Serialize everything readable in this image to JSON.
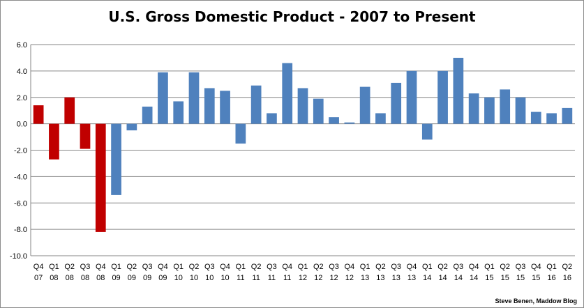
{
  "chart_data": {
    "type": "bar",
    "title": "U.S. Gross Domestic Product - 2007 to Present",
    "source": "Steve Benen, Maddow Blog",
    "xlabel": "",
    "ylabel": "",
    "ylim": [
      -10.0,
      6.0
    ],
    "yticks": [
      "6.0",
      "4.0",
      "2.0",
      "0.0",
      "-2.0",
      "-4.0",
      "-6.0",
      "-8.0",
      "-10.0"
    ],
    "grid": true,
    "legend": "none",
    "colors": {
      "highlight": "#c00000",
      "default": "#4f81bd"
    },
    "categories": [
      [
        "Q4",
        "07"
      ],
      [
        "Q1",
        "08"
      ],
      [
        "Q2",
        "08"
      ],
      [
        "Q3",
        "08"
      ],
      [
        "Q4",
        "08"
      ],
      [
        "Q1",
        "09"
      ],
      [
        "Q2",
        "09"
      ],
      [
        "Q3",
        "09"
      ],
      [
        "Q4",
        "09"
      ],
      [
        "Q1",
        "10"
      ],
      [
        "Q2",
        "10"
      ],
      [
        "Q3",
        "10"
      ],
      [
        "Q4",
        "10"
      ],
      [
        "Q1",
        "11"
      ],
      [
        "Q2",
        "11"
      ],
      [
        "Q3",
        "11"
      ],
      [
        "Q4",
        "11"
      ],
      [
        "Q1",
        "12"
      ],
      [
        "Q2",
        "12"
      ],
      [
        "Q3",
        "12"
      ],
      [
        "Q4",
        "12"
      ],
      [
        "Q1",
        "13"
      ],
      [
        "Q2",
        "13"
      ],
      [
        "Q3",
        "13"
      ],
      [
        "Q4",
        "13"
      ],
      [
        "Q1",
        "14"
      ],
      [
        "Q2",
        "14"
      ],
      [
        "Q3",
        "14"
      ],
      [
        "Q4",
        "14"
      ],
      [
        "Q1",
        "15"
      ],
      [
        "Q2",
        "15"
      ],
      [
        "Q3",
        "15"
      ],
      [
        "Q4",
        "15"
      ],
      [
        "Q1",
        "16"
      ],
      [
        "Q2",
        "16"
      ]
    ],
    "values": [
      1.4,
      -2.7,
      2.0,
      -1.9,
      -8.2,
      -5.4,
      -0.5,
      1.3,
      3.9,
      1.7,
      3.9,
      2.7,
      2.5,
      -1.5,
      2.9,
      0.8,
      4.6,
      2.7,
      1.9,
      0.5,
      0.1,
      2.8,
      0.8,
      3.1,
      4.0,
      -1.2,
      4.0,
      5.0,
      2.3,
      2.0,
      2.6,
      2.0,
      0.9,
      0.8,
      1.2
    ],
    "bar_colors": [
      "highlight",
      "highlight",
      "highlight",
      "highlight",
      "highlight",
      "default",
      "default",
      "default",
      "default",
      "default",
      "default",
      "default",
      "default",
      "default",
      "default",
      "default",
      "default",
      "default",
      "default",
      "default",
      "default",
      "default",
      "default",
      "default",
      "default",
      "default",
      "default",
      "default",
      "default",
      "default",
      "default",
      "default",
      "default",
      "default",
      "default"
    ]
  }
}
